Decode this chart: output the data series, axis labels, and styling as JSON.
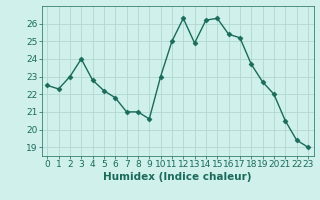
{
  "x": [
    0,
    1,
    2,
    3,
    4,
    5,
    6,
    7,
    8,
    9,
    10,
    11,
    12,
    13,
    14,
    15,
    16,
    17,
    18,
    19,
    20,
    21,
    22,
    23
  ],
  "y": [
    22.5,
    22.3,
    23.0,
    24.0,
    22.8,
    22.2,
    21.8,
    21.0,
    21.0,
    20.6,
    23.0,
    25.0,
    26.3,
    24.9,
    26.2,
    26.3,
    25.4,
    25.2,
    23.7,
    22.7,
    22.0,
    20.5,
    19.4,
    19.0
  ],
  "line_color": "#1a6b5a",
  "marker": "D",
  "marker_size": 2.5,
  "line_width": 1.0,
  "bg_color": "#cff0eb",
  "grid_color": "#b0d8d0",
  "xlabel": "Humidex (Indice chaleur)",
  "ylim": [
    18.5,
    27.0
  ],
  "xlim": [
    -0.5,
    23.5
  ],
  "yticks": [
    19,
    20,
    21,
    22,
    23,
    24,
    25,
    26
  ],
  "xticks": [
    0,
    1,
    2,
    3,
    4,
    5,
    6,
    7,
    8,
    9,
    10,
    11,
    12,
    13,
    14,
    15,
    16,
    17,
    18,
    19,
    20,
    21,
    22,
    23
  ],
  "tick_fontsize": 6.5,
  "xlabel_fontsize": 7.5
}
